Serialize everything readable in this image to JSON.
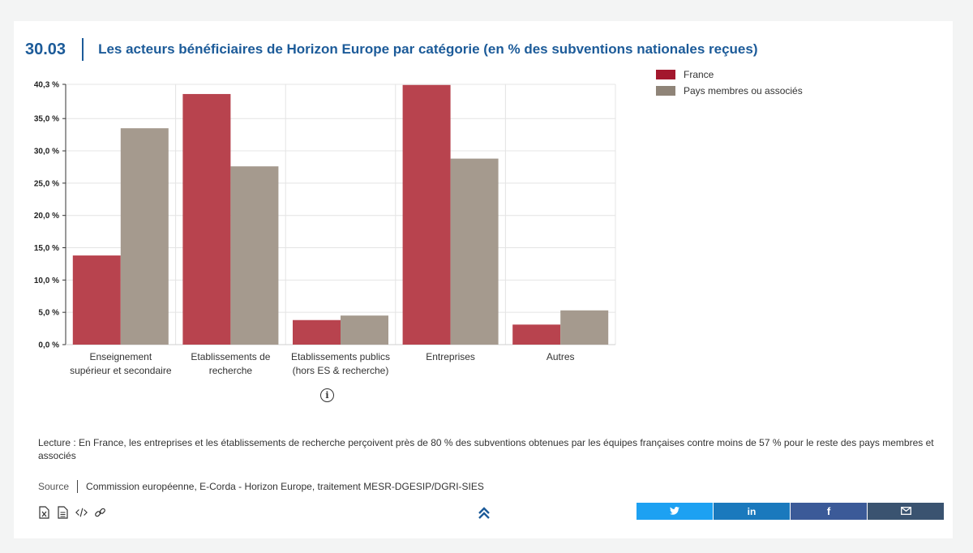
{
  "figure": {
    "number": "30.03",
    "title": "Les acteurs bénéficiaires de Horizon Europe par catégorie (en % des subventions nationales reçues)"
  },
  "chart_data": {
    "type": "bar",
    "categories": [
      [
        "Enseignement",
        "supérieur et secondaire"
      ],
      [
        "Etablissements de",
        "recherche"
      ],
      [
        "Etablissements publics",
        "(hors ES & recherche)"
      ],
      [
        "Entreprises"
      ],
      [
        "Autres"
      ]
    ],
    "series": [
      {
        "name": "France",
        "color": "#b8434e",
        "values": [
          13.8,
          38.8,
          3.8,
          40.2,
          3.1
        ]
      },
      {
        "name": "Pays membres ou associés",
        "color": "#a59a8e",
        "values": [
          33.5,
          27.6,
          4.5,
          28.8,
          5.3
        ]
      }
    ],
    "y_ticks": [
      "0,0 %",
      "5,0 %",
      "10,0 %",
      "15,0 %",
      "20,0 %",
      "25,0 %",
      "30,0 %",
      "35,0 %",
      "40,3 %"
    ],
    "ylim": [
      0,
      40.3
    ],
    "grid": true,
    "legend_position": "top-right"
  },
  "legend": {
    "items": [
      {
        "label": "France",
        "color": "#a3172d"
      },
      {
        "label": "Pays membres ou associés",
        "color": "#8f8478"
      }
    ]
  },
  "info_icon": "info-circle-icon",
  "lecture": "Lecture : En France, les entreprises et les établissements de recherche perçoivent près de 80 % des subventions obtenues par les équipes françaises contre moins de 57 % pour le reste des pays membres et associés",
  "source": {
    "label": "Source",
    "text": "Commission européenne, E-Corda - Horizon Europe, traitement MESR-DGESIP/DGRI-SIES"
  },
  "tools": [
    "excel-download-icon",
    "pdf-document-icon",
    "embed-code-icon",
    "link-icon"
  ],
  "scroll_top_icon": "double-chevron-up-icon",
  "share": [
    {
      "network": "twitter",
      "icon": "twitter-icon",
      "color": "#1da1f2"
    },
    {
      "network": "linkedin",
      "icon": "linkedin-icon",
      "color": "#1a79bd"
    },
    {
      "network": "facebook",
      "icon": "facebook-icon",
      "color": "#3b5a98"
    },
    {
      "network": "email",
      "icon": "email-icon",
      "color": "#3a5370"
    }
  ]
}
